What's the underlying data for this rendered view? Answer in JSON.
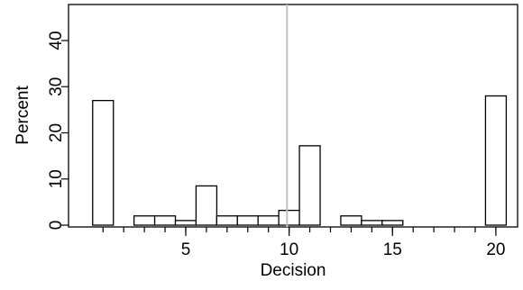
{
  "chart_data": {
    "type": "bar",
    "xlabel": "Decision",
    "ylabel": "Percent",
    "x": [
      1,
      3,
      4,
      5,
      6,
      7,
      8,
      9,
      10,
      11,
      13,
      14,
      15,
      20
    ],
    "values": [
      27,
      2,
      2,
      1,
      8.5,
      2,
      2,
      2,
      3.2,
      17.2,
      2,
      1,
      1,
      28
    ],
    "xlim": [
      0,
      21
    ],
    "ylim": [
      0,
      45
    ],
    "xticks": [
      5,
      10,
      15,
      20
    ],
    "xticks_minor": [
      1,
      2,
      3,
      4,
      5,
      6,
      7,
      8,
      9,
      10,
      11,
      12,
      13,
      14,
      15,
      16,
      17,
      18,
      19,
      20
    ],
    "yticks": [
      0,
      10,
      20,
      30,
      40
    ],
    "reference_line_x": 9.9,
    "reference_line_color": "#bfbfbf",
    "bar_fill": "#ffffff",
    "bar_stroke": "#000000",
    "grid": false,
    "legend": "none"
  }
}
